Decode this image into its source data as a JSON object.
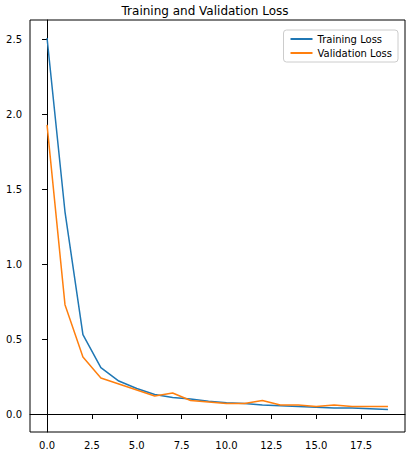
{
  "chart_data": {
    "type": "line",
    "title": "Training and Validation Loss",
    "x": [
      0,
      1,
      2,
      3,
      4,
      5,
      6,
      7,
      8,
      9,
      10,
      11,
      12,
      13,
      14,
      15,
      16,
      17,
      18,
      19
    ],
    "series": [
      {
        "name": "Training Loss",
        "color": "#1f77b4",
        "values": [
          2.51,
          1.35,
          0.53,
          0.31,
          0.22,
          0.17,
          0.13,
          0.11,
          0.1,
          0.085,
          0.075,
          0.07,
          0.06,
          0.055,
          0.05,
          0.045,
          0.04,
          0.04,
          0.035,
          0.03
        ]
      },
      {
        "name": "Validation Loss",
        "color": "#ff7f0e",
        "values": [
          1.93,
          0.73,
          0.38,
          0.24,
          0.2,
          0.16,
          0.12,
          0.14,
          0.09,
          0.08,
          0.07,
          0.07,
          0.09,
          0.06,
          0.06,
          0.05,
          0.06,
          0.05,
          0.05,
          0.05
        ]
      }
    ],
    "xlim": [
      -0.95,
      19.95
    ],
    "xticks": [
      {
        "value": 0,
        "label": "0.0"
      },
      2.5,
      {
        "value": 5,
        "label": "5.0"
      },
      7.5,
      {
        "value": 10,
        "label": "10.0"
      },
      12.5,
      {
        "value": 15,
        "label": "15.0"
      },
      17.5
    ],
    "ylim": [
      -0.12,
      2.63
    ],
    "yticks": [
      {
        "value": 0,
        "label": "0.0"
      },
      0.5,
      {
        "value": 1,
        "label": "1.0"
      },
      1.5,
      {
        "value": 2,
        "label": "2.0"
      },
      2.5
    ],
    "grid": false,
    "legend": "upper right"
  }
}
